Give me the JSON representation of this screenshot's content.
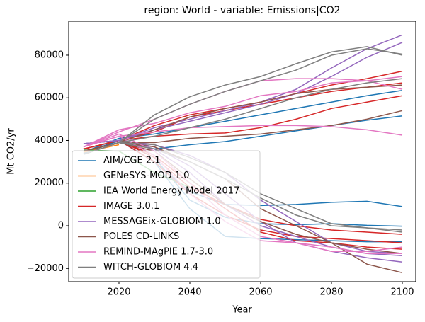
{
  "chart_data": {
    "type": "line",
    "title": "region: World - variable: Emissions|CO2",
    "xlabel": "Year",
    "ylabel": "Mt CO2/yr",
    "x": [
      2010,
      2020,
      2030,
      2040,
      2050,
      2060,
      2070,
      2080,
      2090,
      2100
    ],
    "xlim": [
      2005.8,
      2103.8
    ],
    "xticks": [
      2020,
      2040,
      2060,
      2080,
      2100
    ],
    "ylim": [
      -26220,
      95920
    ],
    "yticks": [
      {
        "value": -20000,
        "label": "−20000"
      },
      0,
      20000,
      40000,
      60000,
      80000
    ],
    "legend": "lower left",
    "series": [
      {
        "name": "AIM/CGE 2.1",
        "color": "#1f77b4",
        "runs": [
          [
            34000,
            40000,
            36000,
            38000,
            39500,
            42000,
            44500,
            47000,
            49500,
            51500
          ],
          [
            34500,
            41000,
            43000,
            46000,
            49000,
            52000,
            55000,
            58000,
            61000,
            63500
          ],
          [
            34000,
            40000,
            30000,
            16000,
            10000,
            9500,
            10000,
            11000,
            11500,
            9000
          ],
          [
            34000,
            40000,
            32000,
            12000,
            4000,
            1000,
            500,
            1000,
            200,
            -200
          ],
          [
            34000,
            40000,
            30000,
            8000,
            -5000,
            -6000,
            -6500,
            -7000,
            -7500,
            -7500
          ]
        ]
      },
      {
        "name": "GENeSYS-MOD 1.0",
        "color": "#ff7f0e",
        "runs": [
          [
            34500,
            38000,
            null,
            null,
            null,
            null,
            null,
            null,
            null,
            null
          ]
        ]
      },
      {
        "name": "IEA World Energy Model 2017",
        "color": "#2ca02c",
        "runs": [
          [
            35500,
            35000,
            25000,
            18000,
            null,
            null,
            null,
            null,
            null,
            null
          ]
        ]
      },
      {
        "name": "IMAGE 3.0.1",
        "color": "#d62728",
        "runs": [
          [
            36000,
            40000,
            47000,
            52000,
            55000,
            58000,
            62000,
            66000,
            69000,
            72500
          ],
          [
            36000,
            40000,
            42000,
            43000,
            43500,
            46000,
            50000,
            55000,
            58000,
            61000
          ],
          [
            36000,
            40000,
            44000,
            51000,
            54000,
            57000,
            60000,
            63000,
            65000,
            67000
          ],
          [
            36000,
            40000,
            33000,
            20000,
            8000,
            -3000,
            -7000,
            -8000,
            -10000,
            -11000
          ],
          [
            36000,
            40000,
            30000,
            15000,
            5000,
            -2000,
            -5000,
            -6000,
            -7000,
            -8000
          ],
          [
            36000,
            40000,
            32000,
            18000,
            10000,
            3000,
            0,
            -2000,
            -3000,
            -4000
          ]
        ]
      },
      {
        "name": "MESSAGEix-GLOBIOM 1.0",
        "color": "#9467bd",
        "runs": [
          [
            38500,
            40000,
            46000,
            50000,
            54000,
            58000,
            64000,
            74000,
            83000,
            89500
          ],
          [
            38500,
            40000,
            45000,
            49000,
            53000,
            57000,
            62000,
            70000,
            79000,
            86000
          ],
          [
            38500,
            40000,
            38000,
            33000,
            25000,
            12000,
            2000,
            -8000,
            -12000,
            -13000
          ],
          [
            38500,
            40000,
            37000,
            28000,
            15000,
            2000,
            -8000,
            -12000,
            -15000,
            -17000
          ],
          [
            38500,
            40000,
            36000,
            25000,
            10000,
            0,
            -5000,
            -10000,
            -13000,
            -14000
          ]
        ]
      },
      {
        "name": "POLES CD-LINKS",
        "color": "#8c564b",
        "runs": [
          [
            35000,
            39000,
            39000,
            41000,
            42000,
            43000,
            45000,
            47000,
            50000,
            54000
          ],
          [
            35000,
            39000,
            45000,
            51000,
            55000,
            58000,
            62000,
            64000,
            65000,
            66000
          ],
          [
            35000,
            39000,
            37000,
            30000,
            22000,
            8000,
            0,
            -8000,
            -18000,
            -22000
          ],
          [
            35000,
            39000,
            35000,
            22000,
            10000,
            2000,
            -4000,
            -8000,
            -11000,
            -13000
          ]
        ]
      },
      {
        "name": "REMIND-MAgPIE 1.7-3.0",
        "color": "#e377c2",
        "runs": [
          [
            37000,
            42000,
            44000,
            46000,
            46500,
            47000,
            47000,
            46500,
            45000,
            42500
          ],
          [
            37000,
            45000,
            48000,
            53000,
            56000,
            61000,
            63000,
            67000,
            68000,
            70000
          ],
          [
            37000,
            44000,
            50000,
            57000,
            63000,
            68000,
            69000,
            69000,
            68000,
            64000
          ],
          [
            37000,
            43000,
            35000,
            20000,
            5000,
            -5000,
            -8000,
            -10000,
            -13000,
            -13000
          ],
          [
            37000,
            42000,
            33000,
            15000,
            2000,
            -7000,
            -8000,
            -12000,
            -12000,
            -10000
          ]
        ]
      },
      {
        "name": "WITCH-GLOBIOM 4.4",
        "color": "#7f7f7f",
        "runs": [
          [
            33500,
            39000,
            52000,
            60500,
            66000,
            70000,
            76000,
            81500,
            84000,
            80000
          ],
          [
            33500,
            39000,
            50000,
            57000,
            63000,
            68000,
            73000,
            80000,
            83000,
            80500
          ],
          [
            33500,
            39000,
            42000,
            46000,
            50000,
            55000,
            60000,
            64000,
            67000,
            69000
          ],
          [
            33500,
            39000,
            38000,
            32000,
            25000,
            15000,
            8000,
            1000,
            -1000,
            -3000
          ],
          [
            33500,
            39000,
            36000,
            30000,
            22000,
            13000,
            5000,
            0,
            -1000,
            -2000
          ]
        ]
      }
    ]
  }
}
